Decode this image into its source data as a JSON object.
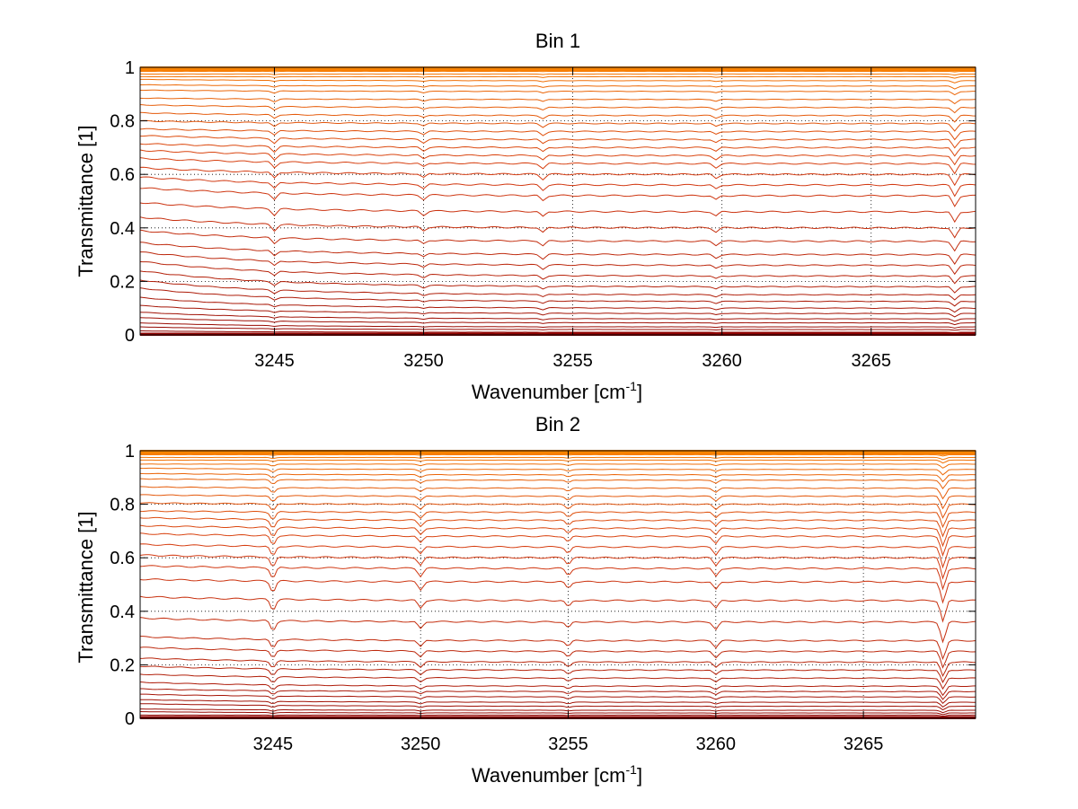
{
  "chart_data": [
    {
      "type": "line",
      "title": "Bin 1",
      "xlabel": "Wavenumber [cm",
      "xlabel_sup": "-1",
      "xlabel_end": "]",
      "ylabel": "Transmittance [1]",
      "xlim": [
        3240.5,
        3268.5
      ],
      "ylim": [
        0,
        1
      ],
      "xticks": [
        3245,
        3250,
        3255,
        3260,
        3265
      ],
      "xtick_labels": [
        "3245",
        "3250",
        "3255",
        "3260",
        "3265"
      ],
      "yticks": [
        0,
        0.2,
        0.4,
        0.6,
        0.8,
        1
      ],
      "ytick_labels": [
        "0",
        "0.2",
        "0.4",
        "0.6",
        "0.8",
        "1"
      ],
      "grid": true,
      "colormap": "hot (dark red to orange)",
      "color_low": "#8b0000",
      "color_mid": "#d43a12",
      "color_high": "#ff8c00",
      "series_levels": [
        0.0,
        0.005,
        0.01,
        0.02,
        0.03,
        0.045,
        0.06,
        0.08,
        0.1,
        0.125,
        0.15,
        0.18,
        0.22,
        0.26,
        0.3,
        0.35,
        0.4,
        0.46,
        0.52,
        0.56,
        0.6,
        0.64,
        0.67,
        0.7,
        0.73,
        0.76,
        0.79,
        0.82,
        0.85,
        0.88,
        0.91,
        0.93,
        0.95,
        0.965,
        0.975,
        0.985,
        0.99,
        0.995,
        0.998,
        1.0
      ],
      "series_start_offsets": [
        0.0,
        0.0,
        0.005,
        0.01,
        0.015,
        0.02,
        0.025,
        0.03,
        0.04,
        0.05,
        0.055,
        0.06,
        0.055,
        0.05,
        0.045,
        0.04,
        0.04,
        0.035,
        0.03,
        0.03,
        0.025,
        0.02,
        0.02,
        0.015,
        0.015,
        0.01,
        0.01,
        0.01,
        0.01,
        0.005,
        0.005,
        0.005,
        0.005,
        0.0,
        0.0,
        0.0,
        0.0,
        0.0,
        0.0,
        0.0
      ],
      "absorption_lines": [
        {
          "x": 3245.0,
          "depth": 0.012
        },
        {
          "x": 3250.0,
          "depth": 0.008
        },
        {
          "x": 3254.0,
          "depth": 0.01
        },
        {
          "x": 3259.8,
          "depth": 0.008
        },
        {
          "x": 3267.8,
          "depth": 0.02
        }
      ]
    },
    {
      "type": "line",
      "title": "Bin 2",
      "xlabel": "Wavenumber [cm",
      "xlabel_sup": "-1",
      "xlabel_end": "]",
      "ylabel": "Transmittance [1]",
      "xlim": [
        3240.5,
        3268.8
      ],
      "ylim": [
        0,
        1
      ],
      "xticks": [
        3245,
        3250,
        3255,
        3260,
        3265
      ],
      "xtick_labels": [
        "3245",
        "3250",
        "3255",
        "3260",
        "3265"
      ],
      "yticks": [
        0,
        0.2,
        0.4,
        0.6,
        0.8,
        1
      ],
      "ytick_labels": [
        "0",
        "0.2",
        "0.4",
        "0.6",
        "0.8",
        "1"
      ],
      "grid": true,
      "colormap": "hot (dark red to orange)",
      "color_low": "#8b0000",
      "color_mid": "#d43a12",
      "color_high": "#ff8c00",
      "series_levels": [
        0.0,
        0.005,
        0.012,
        0.02,
        0.03,
        0.045,
        0.06,
        0.08,
        0.1,
        0.12,
        0.15,
        0.18,
        0.21,
        0.25,
        0.29,
        0.36,
        0.44,
        0.51,
        0.56,
        0.6,
        0.64,
        0.68,
        0.71,
        0.74,
        0.77,
        0.8,
        0.83,
        0.86,
        0.89,
        0.91,
        0.93,
        0.95,
        0.965,
        0.975,
        0.985,
        0.99,
        0.995,
        0.998,
        1.0
      ],
      "series_start_offsets": [
        0.0,
        0.0,
        0.0,
        0.005,
        0.005,
        0.01,
        0.01,
        0.01,
        0.01,
        0.015,
        0.015,
        0.015,
        0.015,
        0.015,
        0.015,
        0.015,
        0.015,
        0.01,
        0.01,
        0.01,
        0.01,
        0.01,
        0.01,
        0.01,
        0.005,
        0.005,
        0.005,
        0.005,
        0.005,
        0.005,
        0.005,
        0.0,
        0.0,
        0.0,
        0.0,
        0.0,
        0.0,
        0.0,
        0.0
      ],
      "absorption_lines": [
        {
          "x": 3245.0,
          "depth": 0.02
        },
        {
          "x": 3250.0,
          "depth": 0.015
        },
        {
          "x": 3255.0,
          "depth": 0.012
        },
        {
          "x": 3260.0,
          "depth": 0.015
        },
        {
          "x": 3267.7,
          "depth": 0.04
        }
      ]
    }
  ]
}
